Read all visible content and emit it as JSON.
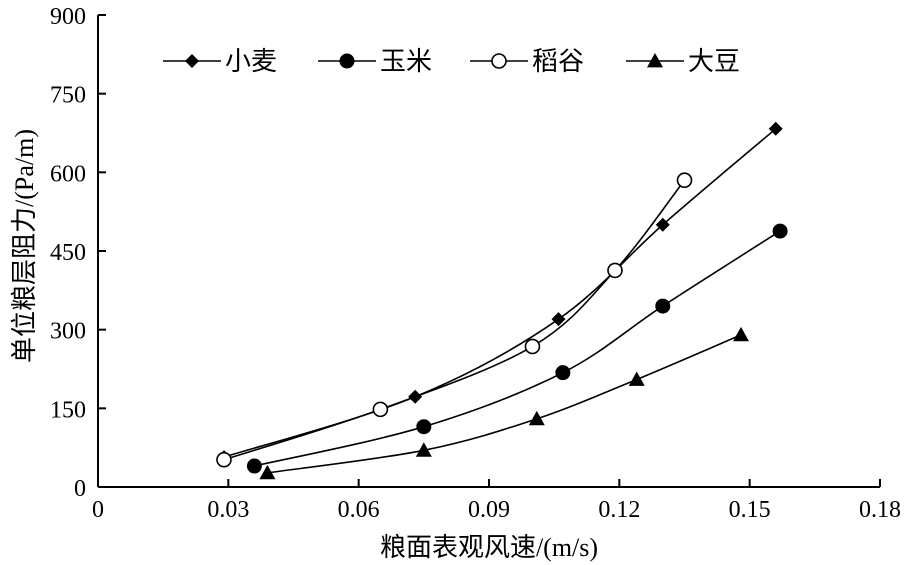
{
  "chart_data": {
    "type": "line",
    "title": "",
    "xlabel": "粮面表观风速/(m/s)",
    "ylabel": "单位粮层阻力/(Pa/m)",
    "xlim": [
      0,
      0.18
    ],
    "ylim": [
      0,
      900
    ],
    "xticks": [
      0,
      0.03,
      0.06,
      0.09,
      0.12,
      0.15,
      0.18
    ],
    "xtick_labels": [
      "0",
      "0.03",
      "0.06",
      "0.09",
      "0.12",
      "0.15",
      "0.18"
    ],
    "yticks": [
      0,
      150,
      300,
      450,
      600,
      750,
      900
    ],
    "ytick_labels": [
      "0",
      "150",
      "300",
      "450",
      "600",
      "750",
      "900"
    ],
    "grid": false,
    "legend_position": "top",
    "series": [
      {
        "name": "小麦",
        "marker": "diamond-filled",
        "x": [
          0.029,
          0.073,
          0.106,
          0.13,
          0.156
        ],
        "y": [
          57,
          172,
          320,
          500,
          683
        ]
      },
      {
        "name": "玉米",
        "marker": "circle-filled",
        "x": [
          0.036,
          0.075,
          0.107,
          0.13,
          0.157
        ],
        "y": [
          40,
          115,
          218,
          345,
          488
        ]
      },
      {
        "name": "稻谷",
        "marker": "circle-open",
        "x": [
          0.029,
          0.065,
          0.1,
          0.119,
          0.135
        ],
        "y": [
          52,
          148,
          268,
          413,
          585
        ]
      },
      {
        "name": "大豆",
        "marker": "triangle-filled",
        "x": [
          0.039,
          0.075,
          0.101,
          0.124,
          0.148
        ],
        "y": [
          27,
          70,
          130,
          205,
          290
        ]
      }
    ]
  }
}
